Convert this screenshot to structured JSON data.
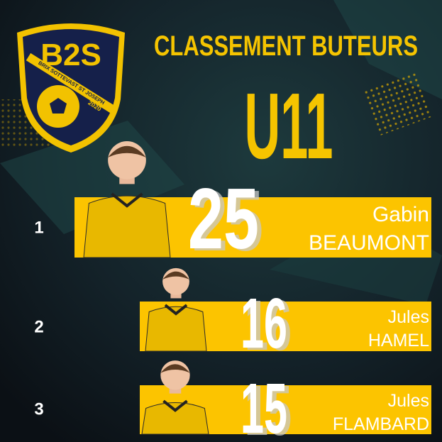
{
  "logo": {
    "initials": "B2S",
    "club": "BRIX SOTTEVAST ST JOSEPH",
    "year": "2020"
  },
  "header": {
    "title": "CLASSEMENT BUTEURS",
    "category": "U11"
  },
  "ranking": [
    {
      "rank": 1,
      "goals": 25,
      "first_name": "Gabin",
      "last_name": "BEAUMONT"
    },
    {
      "rank": 2,
      "goals": 16,
      "first_name": "Jules",
      "last_name": "HAMEL"
    },
    {
      "rank": 3,
      "goals": 15,
      "first_name": "Jules",
      "last_name": "FLAMBARD"
    }
  ]
}
